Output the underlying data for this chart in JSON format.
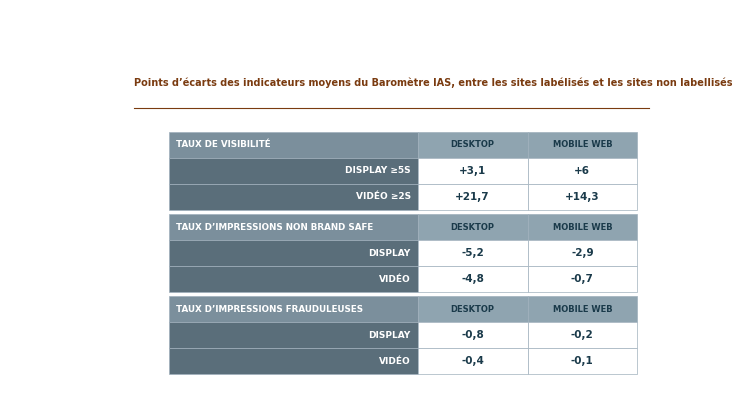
{
  "title": "Points d’écarts des indicateurs moyens du Baromètre IAS, entre les sites labélisés et les sites non labellisés",
  "background_color": "#ffffff",
  "header_bg": "#7b8f9c",
  "col_header_bg": "#8fa4b0",
  "row_bg_dark": "#5a6e7a",
  "border_color": "#a0b0bc",
  "sections": [
    {
      "header": "TAUX DE VISIBILITÉ",
      "rows": [
        {
          "label": "DISPLAY ≥5S",
          "desktop": "+3,1",
          "mobile": "+6"
        },
        {
          "label": "VIDÉO ≥2S",
          "desktop": "+21,7",
          "mobile": "+14,3"
        }
      ]
    },
    {
      "header": "TAUX D’IMPRESSIONS NON BRAND SAFE",
      "rows": [
        {
          "label": "DISPLAY",
          "desktop": "-5,2",
          "mobile": "-2,9"
        },
        {
          "label": "VIDÉO",
          "desktop": "-4,8",
          "mobile": "-0,7"
        }
      ]
    },
    {
      "header": "TAUX D’IMPRESSIONS FRAUDULEUSES",
      "rows": [
        {
          "label": "DISPLAY",
          "desktop": "-0,8",
          "mobile": "-0,2"
        },
        {
          "label": "VIDÉO",
          "desktop": "-0,4",
          "mobile": "-0,1"
        }
      ]
    }
  ],
  "col_headers": [
    "DESKTOP",
    "MOBILE WEB"
  ],
  "fig_width": 7.5,
  "fig_height": 4.12,
  "dpi": 100
}
